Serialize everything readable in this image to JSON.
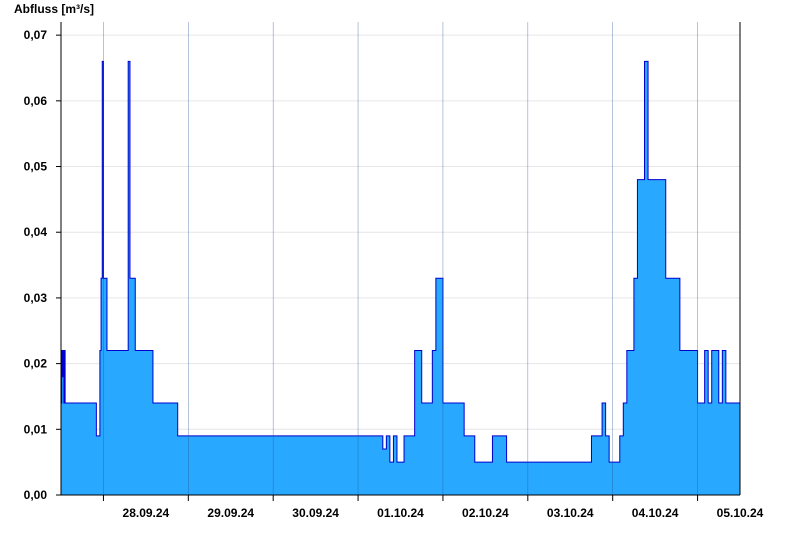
{
  "chart_data": {
    "type": "area",
    "ylabel": "Abfluss [m³/s]",
    "xlabel": "",
    "title": "",
    "ylim": [
      0,
      0.072
    ],
    "yticks": [
      0,
      0.01,
      0.02,
      0.03,
      0.04,
      0.05,
      0.06,
      0.07
    ],
    "ytick_labels": [
      "0,00",
      "0,01",
      "0,02",
      "0,03",
      "0,04",
      "0,05",
      "0,06",
      "0,07"
    ],
    "xlim": [
      "2024-09-27T12:00",
      "2024-10-05T12:00"
    ],
    "xticks": [
      "28.09.24",
      "29.09.24",
      "30.09.24",
      "01.10.24",
      "02.10.24",
      "03.10.24",
      "04.10.24",
      "05.10.24"
    ],
    "grid": true,
    "fill_color": "#29a8ff",
    "line_color": "#0000cc",
    "series": [
      {
        "x": [
          "2024-09-27T12:00",
          "2024-09-27T12:12",
          "2024-09-27T12:18",
          "2024-09-27T12:24",
          "2024-09-27T12:30",
          "2024-09-27T12:40",
          "2024-09-27T12:50",
          "2024-09-27T13:00",
          "2024-09-27T13:10",
          "2024-09-27T15:00",
          "2024-09-27T21:00",
          "2024-09-27T22:00",
          "2024-09-27T22:30",
          "2024-09-27T23:00",
          "2024-09-27T23:20",
          "2024-09-27T23:40",
          "2024-09-28T00:00",
          "2024-09-28T00:10",
          "2024-09-28T00:20",
          "2024-09-28T00:40",
          "2024-09-28T01:00",
          "2024-09-28T03:00",
          "2024-09-28T06:00",
          "2024-09-28T07:00",
          "2024-09-28T07:30",
          "2024-09-28T07:50",
          "2024-09-28T08:10",
          "2024-09-28T08:30",
          "2024-09-28T09:00",
          "2024-09-28T12:00",
          "2024-09-28T14:00",
          "2024-09-28T17:00",
          "2024-09-28T21:00",
          "2024-09-29T01:00",
          "2024-09-29T06:00",
          "2024-09-29T12:00",
          "2024-09-30T00:00",
          "2024-09-30T12:00",
          "2024-10-01T00:00",
          "2024-10-01T06:00",
          "2024-10-01T07:00",
          "2024-10-01T08:00",
          "2024-10-01T09:00",
          "2024-10-01T10:00",
          "2024-10-01T11:00",
          "2024-10-01T12:00",
          "2024-10-01T13:00",
          "2024-10-01T15:00",
          "2024-10-01T16:00",
          "2024-10-01T18:00",
          "2024-10-01T19:00",
          "2024-10-01T21:00",
          "2024-10-01T22:00",
          "2024-10-02T00:00",
          "2024-10-02T03:00",
          "2024-10-02T06:00",
          "2024-10-02T07:00",
          "2024-10-02T07:40",
          "2024-10-02T08:00",
          "2024-10-02T08:20",
          "2024-10-02T09:00",
          "2024-10-02T11:00",
          "2024-10-02T14:00",
          "2024-10-02T18:00",
          "2024-10-02T21:00",
          "2024-10-03T00:00",
          "2024-10-03T03:00",
          "2024-10-03T06:00",
          "2024-10-03T09:00",
          "2024-10-03T12:00",
          "2024-10-03T15:00",
          "2024-10-03T18:00",
          "2024-10-03T21:00",
          "2024-10-03T22:00",
          "2024-10-03T23:00",
          "2024-10-04T00:00",
          "2024-10-04T02:00",
          "2024-10-04T03:00",
          "2024-10-04T04:00",
          "2024-10-04T05:00",
          "2024-10-04T06:00",
          "2024-10-04T06:30",
          "2024-10-04T07:00",
          "2024-10-04T08:00",
          "2024-10-04T09:00",
          "2024-10-04T10:00",
          "2024-10-04T12:00",
          "2024-10-04T15:00",
          "2024-10-04T18:00",
          "2024-10-04T19:00",
          "2024-10-04T21:00",
          "2024-10-04T22:00",
          "2024-10-05T00:00",
          "2024-10-05T01:00",
          "2024-10-05T02:00",
          "2024-10-05T03:00",
          "2024-10-05T04:00",
          "2024-10-05T05:00",
          "2024-10-05T06:00",
          "2024-10-05T07:00",
          "2024-10-05T08:00",
          "2024-10-05T09:00",
          "2024-10-05T12:00"
        ],
        "values": [
          0.014,
          0.022,
          0.018,
          0.022,
          0.018,
          0.022,
          0.014,
          0.022,
          0.014,
          0.014,
          0.014,
          0.009,
          0.009,
          0.022,
          0.033,
          0.066,
          0.033,
          0.033,
          0.033,
          0.033,
          0.022,
          0.022,
          0.022,
          0.066,
          0.033,
          0.033,
          0.033,
          0.033,
          0.022,
          0.022,
          0.014,
          0.014,
          0.009,
          0.009,
          0.009,
          0.009,
          0.009,
          0.009,
          0.009,
          0.009,
          0.007,
          0.009,
          0.005,
          0.009,
          0.005,
          0.005,
          0.009,
          0.009,
          0.022,
          0.014,
          0.014,
          0.022,
          0.033,
          0.014,
          0.014,
          0.009,
          0.009,
          0.009,
          0.009,
          0.009,
          0.005,
          0.005,
          0.009,
          0.005,
          0.005,
          0.005,
          0.005,
          0.005,
          0.005,
          0.005,
          0.005,
          0.009,
          0.014,
          0.009,
          0.005,
          0.005,
          0.009,
          0.014,
          0.022,
          0.022,
          0.033,
          0.033,
          0.048,
          0.048,
          0.066,
          0.048,
          0.048,
          0.033,
          0.033,
          0.022,
          0.022,
          0.022,
          0.014,
          0.014,
          0.022,
          0.014,
          0.022,
          0.022,
          0.014,
          0.022,
          0.014,
          0.014,
          0.014
        ]
      }
    ]
  }
}
